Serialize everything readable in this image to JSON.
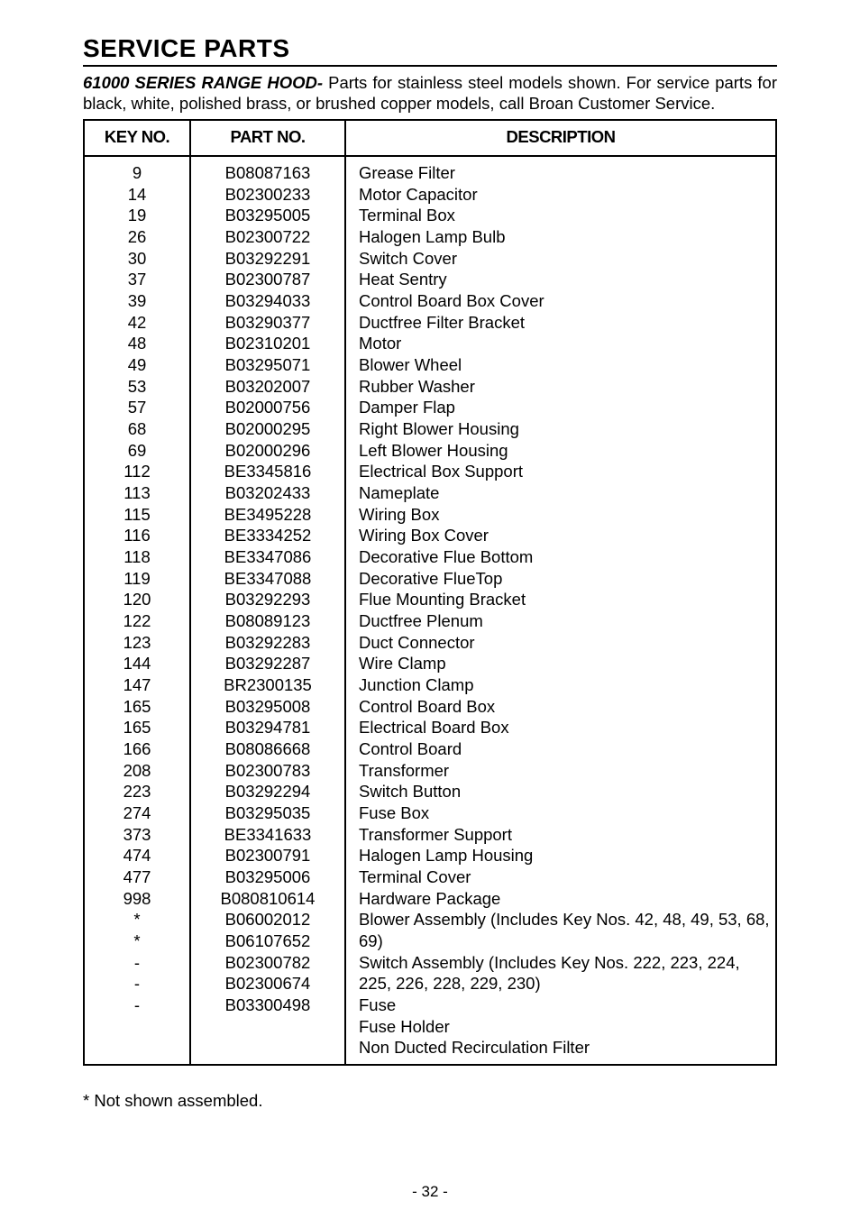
{
  "title": "SERVICE PARTS",
  "intro_bold": "61000 SERIES RANGE HOOD-",
  "intro_rest": " Parts for stainless steel models shown. For service parts for black, white, polished brass, or brushed copper models, call Broan Customer Service.",
  "headers": {
    "key": "KEY NO.",
    "part": "PART NO.",
    "desc": "DESCRIPTION"
  },
  "rows": [
    {
      "key": "9",
      "part": "B08087163",
      "desc": "Grease Filter"
    },
    {
      "key": "14",
      "part": "B02300233",
      "desc": "Motor Capacitor"
    },
    {
      "key": "19",
      "part": "B03295005",
      "desc": "Terminal Box"
    },
    {
      "key": "26",
      "part": "B02300722",
      "desc": "Halogen Lamp Bulb"
    },
    {
      "key": "30",
      "part": "B03292291",
      "desc": "Switch Cover"
    },
    {
      "key": "37",
      "part": "B02300787",
      "desc": "Heat Sentry"
    },
    {
      "key": "39",
      "part": "B03294033",
      "desc": "Control Board Box Cover"
    },
    {
      "key": "42",
      "part": "B03290377",
      "desc": "Ductfree Filter Bracket"
    },
    {
      "key": "48",
      "part": "B02310201",
      "desc": "Motor"
    },
    {
      "key": "49",
      "part": "B03295071",
      "desc": "Blower Wheel"
    },
    {
      "key": "53",
      "part": "B03202007",
      "desc": "Rubber Washer"
    },
    {
      "key": "57",
      "part": "B02000756",
      "desc": "Damper Flap"
    },
    {
      "key": "68",
      "part": "B02000295",
      "desc": "Right Blower Housing"
    },
    {
      "key": "69",
      "part": "B02000296",
      "desc": "Left Blower Housing"
    },
    {
      "key": "112",
      "part": "BE3345816",
      "desc": "Electrical Box Support"
    },
    {
      "key": "113",
      "part": "B03202433",
      "desc": "Nameplate"
    },
    {
      "key": "115",
      "part": "BE3495228",
      "desc": "Wiring Box"
    },
    {
      "key": "116",
      "part": "BE3334252",
      "desc": "Wiring Box Cover"
    },
    {
      "key": "118",
      "part": "BE3347086",
      "desc": "Decorative Flue Bottom"
    },
    {
      "key": "119",
      "part": "BE3347088",
      "desc": "Decorative FlueTop"
    },
    {
      "key": "120",
      "part": "B03292293",
      "desc": "Flue Mounting Bracket"
    },
    {
      "key": "122",
      "part": "B08089123",
      "desc": "Ductfree Plenum"
    },
    {
      "key": "123",
      "part": "B03292283",
      "desc": "Duct Connector"
    },
    {
      "key": "144",
      "part": "B03292287",
      "desc": "Wire Clamp"
    },
    {
      "key": "147",
      "part": "BR2300135",
      "desc": "Junction Clamp"
    },
    {
      "key": "165",
      "part": "B03295008",
      "desc": "Control Board Box"
    },
    {
      "key": "165",
      "part": "B03294781",
      "desc": "Electrical Board Box"
    },
    {
      "key": "166",
      "part": "B08086668",
      "desc": "Control Board"
    },
    {
      "key": "208",
      "part": "B02300783",
      "desc": "Transformer"
    },
    {
      "key": "223",
      "part": "B03292294",
      "desc": "Switch Button"
    },
    {
      "key": "274",
      "part": "B03295035",
      "desc": "Fuse Box"
    },
    {
      "key": "373",
      "part": "BE3341633",
      "desc": "Transformer Support"
    },
    {
      "key": "474",
      "part": "B02300791",
      "desc": "Halogen Lamp Housing"
    },
    {
      "key": "477",
      "part": "B03295006",
      "desc": "Terminal Cover"
    },
    {
      "key": "998",
      "part": "B080810614",
      "desc": "Hardware Package"
    },
    {
      "key": "*",
      "part": "B06002012",
      "desc": "Blower Assembly (Includes Key Nos. 42, 48, 49, 53, 68, 69)"
    },
    {
      "key": "*",
      "part": "B06107652",
      "desc": "Switch Assembly (Includes Key Nos. 222, 223, 224, 225, 226, 228, 229, 230)"
    },
    {
      "key": "-",
      "part": "B02300782",
      "desc": "Fuse"
    },
    {
      "key": "-",
      "part": "B02300674",
      "desc": "Fuse Holder"
    },
    {
      "key": "-",
      "part": "B03300498",
      "desc": "Non Ducted Recirculation Filter"
    }
  ],
  "footnote": "* Not shown assembled.",
  "pagenum": "- 32 -"
}
